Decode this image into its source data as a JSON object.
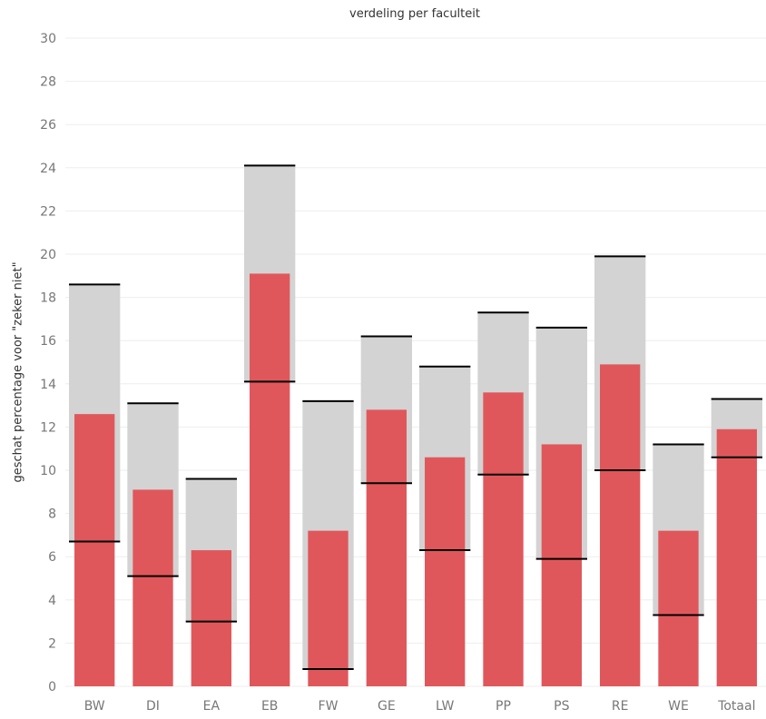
{
  "chart_data": {
    "type": "bar",
    "title": "verdeling per faculteit",
    "xlabel": "",
    "ylabel": "geschat percentage voor \"zeker niet\"",
    "ylim": [
      0,
      30
    ],
    "yticks": [
      0,
      2,
      4,
      6,
      8,
      10,
      12,
      14,
      16,
      18,
      20,
      22,
      24,
      26,
      28,
      30
    ],
    "grid": true,
    "categories": [
      "BW",
      "DI",
      "EA",
      "EB",
      "FW",
      "GE",
      "LW",
      "PP",
      "PS",
      "RE",
      "WE",
      "Totaal"
    ],
    "series": [
      {
        "role": "estimate",
        "values": [
          12.6,
          9.1,
          6.3,
          19.1,
          7.2,
          12.8,
          10.6,
          13.6,
          11.2,
          14.9,
          7.2,
          11.9
        ]
      },
      {
        "role": "interval-upper",
        "values": [
          18.6,
          13.1,
          9.6,
          24.1,
          13.2,
          16.2,
          14.8,
          17.3,
          16.6,
          19.9,
          11.2,
          13.3
        ]
      },
      {
        "role": "interval-lower",
        "values": [
          6.7,
          5.1,
          3.0,
          14.1,
          0.8,
          9.4,
          6.3,
          9.8,
          5.9,
          10.0,
          3.3,
          10.6
        ]
      }
    ],
    "colors": {
      "bar": "#e0575b",
      "band": "#d3d3d3",
      "whisker": "#000000",
      "grid": "#eeeeee",
      "tick": "#777777"
    }
  }
}
